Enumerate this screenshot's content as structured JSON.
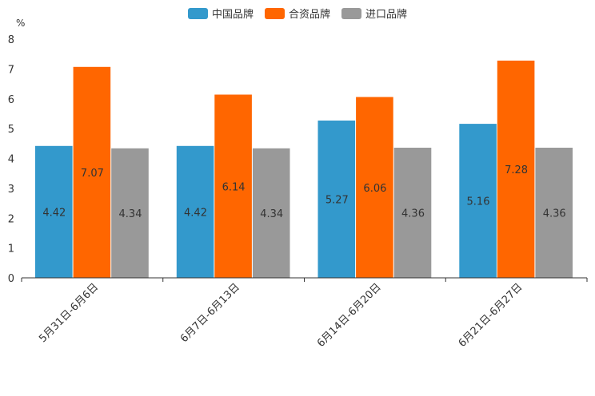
{
  "chart_data": {
    "type": "bar",
    "unit_label": "%",
    "categories": [
      "5月31日-6月6日",
      "6月7日-6月13日",
      "6月14日-6月20日",
      "6月21日-6月27日"
    ],
    "series": [
      {
        "name": "中国品牌",
        "color": "#3399cc",
        "values": [
          4.42,
          4.42,
          5.27,
          5.16
        ]
      },
      {
        "name": "合资品牌",
        "color": "#ff6600",
        "values": [
          7.07,
          6.14,
          6.06,
          7.28
        ]
      },
      {
        "name": "进口品牌",
        "color": "#999999",
        "values": [
          4.34,
          4.34,
          4.36,
          4.36
        ]
      }
    ],
    "ylim": [
      0,
      8
    ],
    "yticks": [
      0,
      1,
      2,
      3,
      4,
      5,
      6,
      7,
      8
    ],
    "legend_position": "top-center",
    "grid": false
  }
}
